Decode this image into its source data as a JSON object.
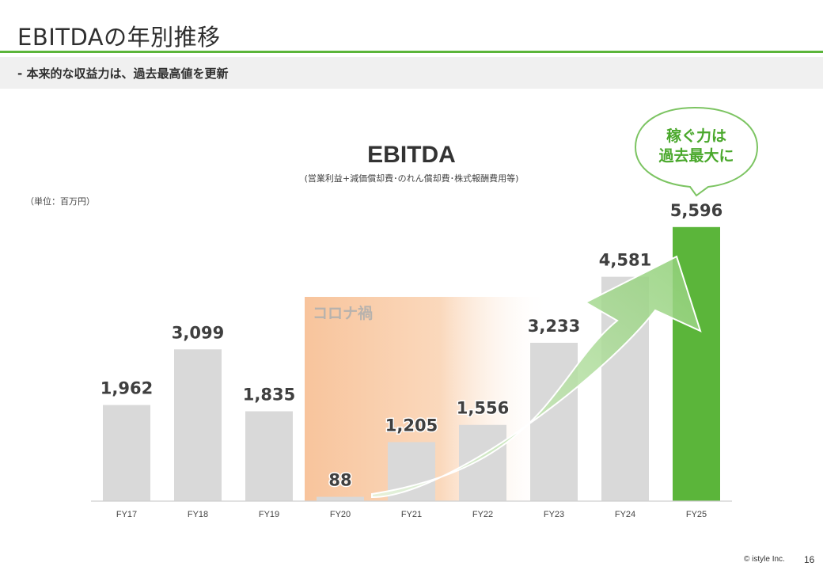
{
  "page": {
    "title": "EBITDAの年別推移",
    "subtitle": "-  本来的な収益力は、過去最高値を更新",
    "copyright": "© istyle Inc.",
    "page_number": "16"
  },
  "chart_data": {
    "type": "bar",
    "title": "EBITDA",
    "subtitle": "(営業利益+減価償却費･のれん償却費･株式報酬費用等)",
    "unit_label": "（単位：百万円）",
    "categories": [
      "FY17",
      "FY18",
      "FY19",
      "FY20",
      "FY21",
      "FY22",
      "FY23",
      "FY24",
      "FY25"
    ],
    "values": [
      1962,
      3099,
      1835,
      88,
      1205,
      1556,
      3233,
      4581,
      5596
    ],
    "value_labels": [
      "1,962",
      "3,099",
      "1,835",
      "88",
      "1,205",
      "1,556",
      "3,233",
      "4,581",
      "5,596"
    ],
    "ylim": [
      0,
      5900
    ],
    "grid": false,
    "legend": "none",
    "highlight_region": {
      "label": "コロナ禍",
      "from": "FY20",
      "to": "FY22"
    },
    "highlight_bar": "FY25",
    "callout": {
      "line1": "稼ぐ力は",
      "line2": "過去最大に"
    },
    "colors": {
      "bar": "#d9d9d9",
      "highlight_bar": "#5bb53a",
      "covid_band": "#f8c9a4",
      "arrow": "#9ed48a",
      "callout_border": "#7cc462",
      "callout_text": "#4aa82c",
      "label": "#3f3f3f",
      "accent": "#5bb53a"
    }
  }
}
